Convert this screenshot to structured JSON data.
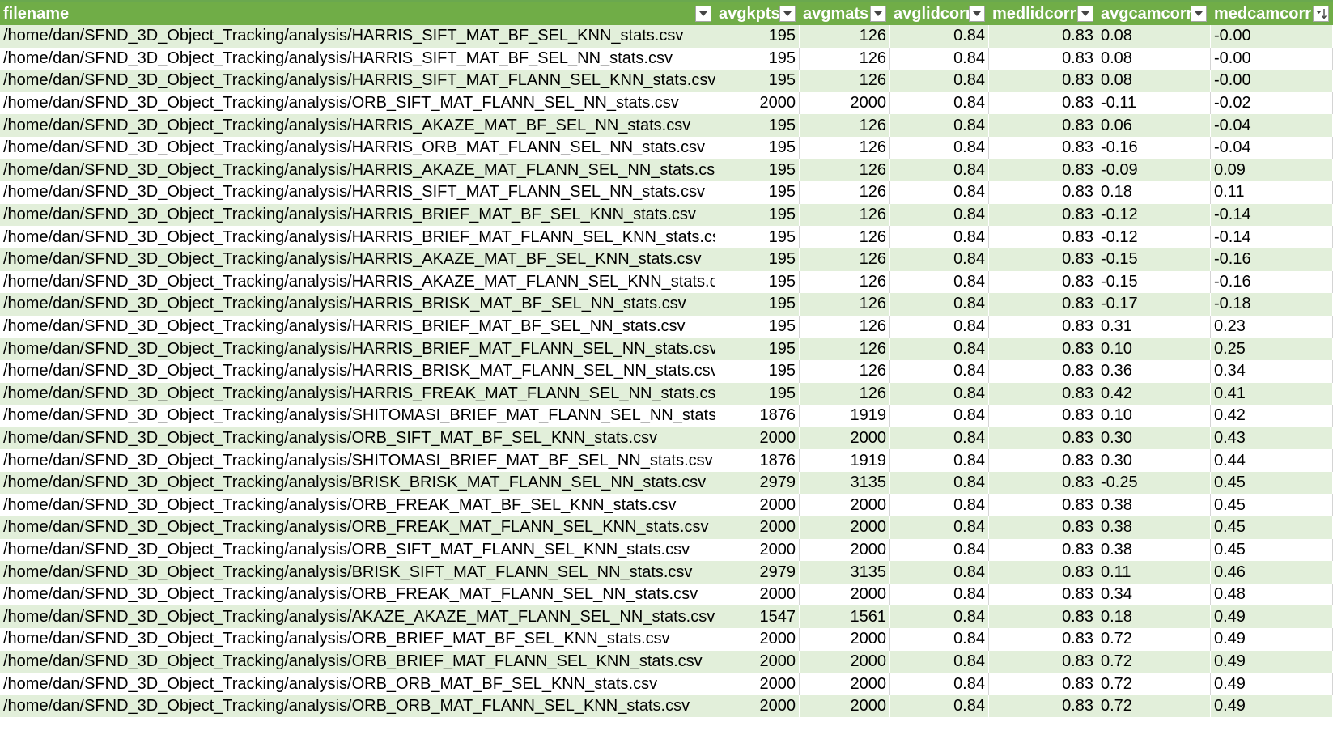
{
  "columns": [
    {
      "label": "filename"
    },
    {
      "label": "avgkpts"
    },
    {
      "label": "avgmats"
    },
    {
      "label": "avglidcorr"
    },
    {
      "label": "medlidcorr"
    },
    {
      "label": "avgcamcorr"
    },
    {
      "label": "medcamcorr"
    }
  ],
  "filter_icon": "dropdown-arrow-icon",
  "sort_icon": "sort-descending-filter-icon",
  "colors": {
    "header_bg": "#70ad47",
    "band_bg": "#e2efda",
    "header_text": "#ffffff"
  },
  "rows": [
    [
      "/home/dan/SFND_3D_Object_Tracking/analysis/HARRIS_SIFT_MAT_BF_SEL_KNN_stats.csv",
      "195",
      "126",
      "0.84",
      "0.83",
      "0.08",
      "-0.00"
    ],
    [
      "/home/dan/SFND_3D_Object_Tracking/analysis/HARRIS_SIFT_MAT_BF_SEL_NN_stats.csv",
      "195",
      "126",
      "0.84",
      "0.83",
      "0.08",
      "-0.00"
    ],
    [
      "/home/dan/SFND_3D_Object_Tracking/analysis/HARRIS_SIFT_MAT_FLANN_SEL_KNN_stats.csv",
      "195",
      "126",
      "0.84",
      "0.83",
      "0.08",
      "-0.00"
    ],
    [
      "/home/dan/SFND_3D_Object_Tracking/analysis/ORB_SIFT_MAT_FLANN_SEL_NN_stats.csv",
      "2000",
      "2000",
      "0.84",
      "0.83",
      "-0.11",
      "-0.02"
    ],
    [
      "/home/dan/SFND_3D_Object_Tracking/analysis/HARRIS_AKAZE_MAT_BF_SEL_NN_stats.csv",
      "195",
      "126",
      "0.84",
      "0.83",
      "0.06",
      "-0.04"
    ],
    [
      "/home/dan/SFND_3D_Object_Tracking/analysis/HARRIS_ORB_MAT_FLANN_SEL_NN_stats.csv",
      "195",
      "126",
      "0.84",
      "0.83",
      "-0.16",
      "-0.04"
    ],
    [
      "/home/dan/SFND_3D_Object_Tracking/analysis/HARRIS_AKAZE_MAT_FLANN_SEL_NN_stats.csv",
      "195",
      "126",
      "0.84",
      "0.83",
      "-0.09",
      "0.09"
    ],
    [
      "/home/dan/SFND_3D_Object_Tracking/analysis/HARRIS_SIFT_MAT_FLANN_SEL_NN_stats.csv",
      "195",
      "126",
      "0.84",
      "0.83",
      "0.18",
      "0.11"
    ],
    [
      "/home/dan/SFND_3D_Object_Tracking/analysis/HARRIS_BRIEF_MAT_BF_SEL_KNN_stats.csv",
      "195",
      "126",
      "0.84",
      "0.83",
      "-0.12",
      "-0.14"
    ],
    [
      "/home/dan/SFND_3D_Object_Tracking/analysis/HARRIS_BRIEF_MAT_FLANN_SEL_KNN_stats.csv",
      "195",
      "126",
      "0.84",
      "0.83",
      "-0.12",
      "-0.14"
    ],
    [
      "/home/dan/SFND_3D_Object_Tracking/analysis/HARRIS_AKAZE_MAT_BF_SEL_KNN_stats.csv",
      "195",
      "126",
      "0.84",
      "0.83",
      "-0.15",
      "-0.16"
    ],
    [
      "/home/dan/SFND_3D_Object_Tracking/analysis/HARRIS_AKAZE_MAT_FLANN_SEL_KNN_stats.cs",
      "195",
      "126",
      "0.84",
      "0.83",
      "-0.15",
      "-0.16"
    ],
    [
      "/home/dan/SFND_3D_Object_Tracking/analysis/HARRIS_BRISK_MAT_BF_SEL_NN_stats.csv",
      "195",
      "126",
      "0.84",
      "0.83",
      "-0.17",
      "-0.18"
    ],
    [
      "/home/dan/SFND_3D_Object_Tracking/analysis/HARRIS_BRIEF_MAT_BF_SEL_NN_stats.csv",
      "195",
      "126",
      "0.84",
      "0.83",
      "0.31",
      "0.23"
    ],
    [
      "/home/dan/SFND_3D_Object_Tracking/analysis/HARRIS_BRIEF_MAT_FLANN_SEL_NN_stats.csv",
      "195",
      "126",
      "0.84",
      "0.83",
      "0.10",
      "0.25"
    ],
    [
      "/home/dan/SFND_3D_Object_Tracking/analysis/HARRIS_BRISK_MAT_FLANN_SEL_NN_stats.csv",
      "195",
      "126",
      "0.84",
      "0.83",
      "0.36",
      "0.34"
    ],
    [
      "/home/dan/SFND_3D_Object_Tracking/analysis/HARRIS_FREAK_MAT_FLANN_SEL_NN_stats.csv",
      "195",
      "126",
      "0.84",
      "0.83",
      "0.42",
      "0.41"
    ],
    [
      "/home/dan/SFND_3D_Object_Tracking/analysis/SHITOMASI_BRIEF_MAT_FLANN_SEL_NN_stats.",
      "1876",
      "1919",
      "0.84",
      "0.83",
      "0.10",
      "0.42"
    ],
    [
      "/home/dan/SFND_3D_Object_Tracking/analysis/ORB_SIFT_MAT_BF_SEL_KNN_stats.csv",
      "2000",
      "2000",
      "0.84",
      "0.83",
      "0.30",
      "0.43"
    ],
    [
      "/home/dan/SFND_3D_Object_Tracking/analysis/SHITOMASI_BRIEF_MAT_BF_SEL_NN_stats.csv",
      "1876",
      "1919",
      "0.84",
      "0.83",
      "0.30",
      "0.44"
    ],
    [
      "/home/dan/SFND_3D_Object_Tracking/analysis/BRISK_BRISK_MAT_FLANN_SEL_NN_stats.csv",
      "2979",
      "3135",
      "0.84",
      "0.83",
      "-0.25",
      "0.45"
    ],
    [
      "/home/dan/SFND_3D_Object_Tracking/analysis/ORB_FREAK_MAT_BF_SEL_KNN_stats.csv",
      "2000",
      "2000",
      "0.84",
      "0.83",
      "0.38",
      "0.45"
    ],
    [
      "/home/dan/SFND_3D_Object_Tracking/analysis/ORB_FREAK_MAT_FLANN_SEL_KNN_stats.csv",
      "2000",
      "2000",
      "0.84",
      "0.83",
      "0.38",
      "0.45"
    ],
    [
      "/home/dan/SFND_3D_Object_Tracking/analysis/ORB_SIFT_MAT_FLANN_SEL_KNN_stats.csv",
      "2000",
      "2000",
      "0.84",
      "0.83",
      "0.38",
      "0.45"
    ],
    [
      "/home/dan/SFND_3D_Object_Tracking/analysis/BRISK_SIFT_MAT_FLANN_SEL_NN_stats.csv",
      "2979",
      "3135",
      "0.84",
      "0.83",
      "0.11",
      "0.46"
    ],
    [
      "/home/dan/SFND_3D_Object_Tracking/analysis/ORB_FREAK_MAT_FLANN_SEL_NN_stats.csv",
      "2000",
      "2000",
      "0.84",
      "0.83",
      "0.34",
      "0.48"
    ],
    [
      "/home/dan/SFND_3D_Object_Tracking/analysis/AKAZE_AKAZE_MAT_FLANN_SEL_NN_stats.csv",
      "1547",
      "1561",
      "0.84",
      "0.83",
      "0.18",
      "0.49"
    ],
    [
      "/home/dan/SFND_3D_Object_Tracking/analysis/ORB_BRIEF_MAT_BF_SEL_KNN_stats.csv",
      "2000",
      "2000",
      "0.84",
      "0.83",
      "0.72",
      "0.49"
    ],
    [
      "/home/dan/SFND_3D_Object_Tracking/analysis/ORB_BRIEF_MAT_FLANN_SEL_KNN_stats.csv",
      "2000",
      "2000",
      "0.84",
      "0.83",
      "0.72",
      "0.49"
    ],
    [
      "/home/dan/SFND_3D_Object_Tracking/analysis/ORB_ORB_MAT_BF_SEL_KNN_stats.csv",
      "2000",
      "2000",
      "0.84",
      "0.83",
      "0.72",
      "0.49"
    ],
    [
      "/home/dan/SFND_3D_Object_Tracking/analysis/ORB_ORB_MAT_FLANN_SEL_KNN_stats.csv",
      "2000",
      "2000",
      "0.84",
      "0.83",
      "0.72",
      "0.49"
    ]
  ]
}
